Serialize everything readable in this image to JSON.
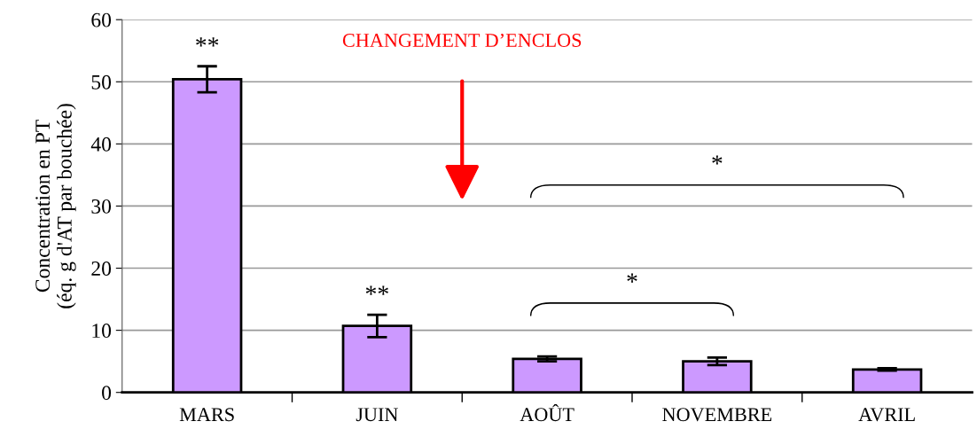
{
  "chart_data": {
    "type": "bar",
    "categories": [
      "MARS",
      "JUIN",
      "AOÛT",
      "NOVEMBRE",
      "AVRIL"
    ],
    "values": [
      50.4,
      10.7,
      5.4,
      5.0,
      3.7
    ],
    "errors": [
      2.1,
      1.8,
      0.4,
      0.6,
      0.2
    ],
    "color": "#cc99ff",
    "ylabel": "Concentration en PT\n(éq. g d'AT par bouchée)",
    "ylim": [
      0,
      60
    ],
    "yticks": [
      0,
      10,
      20,
      30,
      40,
      50,
      60
    ],
    "grid": "y",
    "annotations": [
      "**",
      "**",
      "*",
      "*",
      "CHANGEMENT D’ENCLOS"
    ]
  }
}
